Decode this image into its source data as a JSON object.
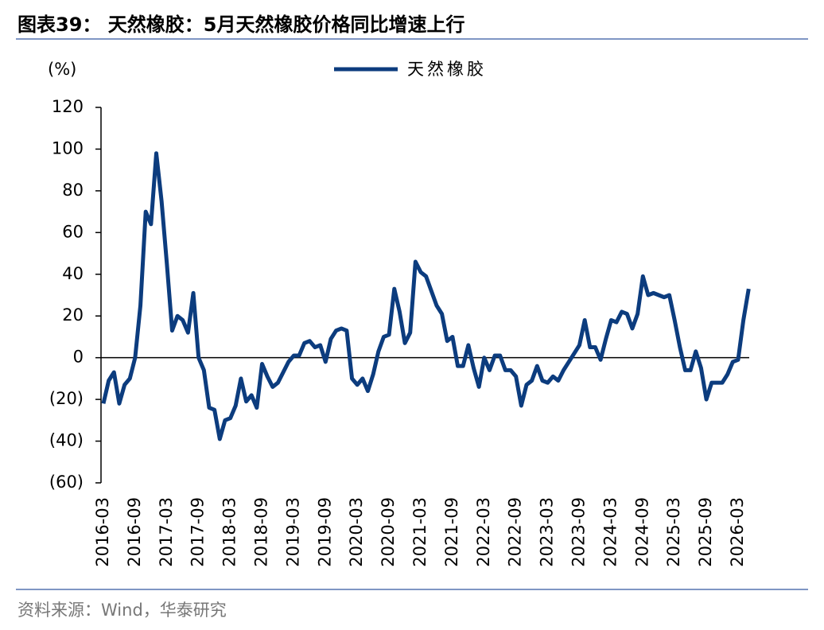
{
  "chart_data": {
    "type": "line",
    "title": "图表39：  天然橡胶：5月天然橡胶价格同比增速上行",
    "y_label": "(%)",
    "source": "资料来源：Wind，华泰研究",
    "categories": [
      "2016-03",
      null,
      null,
      null,
      null,
      null,
      "2016-09",
      null,
      null,
      null,
      null,
      null,
      "2017-03",
      null,
      null,
      null,
      null,
      null,
      "2017-09",
      null,
      null,
      null,
      null,
      null,
      "2018-03",
      null,
      null,
      null,
      null,
      null,
      "2018-09",
      null,
      null,
      null,
      null,
      null,
      "2019-03",
      null,
      null,
      null,
      null,
      null,
      "2019-09",
      null,
      null,
      null,
      null,
      null,
      "2020-03",
      null,
      null,
      null,
      null,
      null,
      "2020-09",
      null,
      null,
      null,
      null,
      null,
      "2021-03",
      null,
      null,
      null,
      null,
      null,
      "2021-09",
      null,
      null,
      null,
      null,
      null,
      "2022-03",
      null,
      null,
      null,
      null,
      null,
      "2022-09",
      null,
      null,
      null,
      null,
      null,
      "2023-03",
      null,
      null,
      null,
      null,
      null,
      "2023-09",
      null,
      null,
      null,
      null,
      null,
      "2024-03",
      null,
      null,
      null,
      null,
      null,
      "2024-09",
      null,
      null,
      null,
      null,
      null,
      "2025-03",
      null,
      null,
      null,
      null,
      null,
      "2025-09",
      null,
      null,
      null,
      null,
      null,
      "2026-03",
      null,
      null
    ],
    "series": [
      {
        "name": "天然橡胶",
        "color": "#0c3c7e",
        "values": [
          -22,
          -11,
          -7,
          -22,
          -13,
          -10,
          0,
          25,
          70,
          64,
          98,
          75,
          45,
          13,
          20,
          18,
          12,
          31,
          0,
          -6,
          -24,
          -25,
          -39,
          -30,
          -29,
          -23,
          -10,
          -21,
          -18,
          -24,
          -3,
          -9,
          -14,
          -12,
          -7,
          -2,
          1,
          1,
          7,
          8,
          5,
          6,
          -2,
          9,
          13,
          14,
          13,
          -10,
          -13,
          -10,
          -16,
          -8,
          3,
          10,
          11,
          33,
          22,
          7,
          12,
          46,
          41,
          39,
          32,
          25,
          21,
          8,
          10,
          -4,
          -4,
          6,
          -5,
          -14,
          0,
          -6,
          1,
          1,
          -6,
          -6,
          -9,
          -23,
          -13,
          -11,
          -4,
          -11,
          -12,
          -9,
          -11,
          -6,
          -2,
          2,
          6,
          18,
          5,
          5,
          -1,
          9,
          18,
          17,
          22,
          21,
          14,
          21,
          39,
          30,
          31,
          30,
          29,
          30,
          18,
          5,
          -6,
          -6,
          3,
          -5,
          -20,
          -12,
          -12,
          -12,
          -8,
          -2,
          -1,
          18,
          33
        ]
      }
    ],
    "ylim": [
      -60,
      120
    ],
    "yticks": [
      {
        "value": -60,
        "label": "(60)"
      },
      {
        "value": -40,
        "label": "(40)"
      },
      {
        "value": -20,
        "label": "(20)"
      },
      0,
      20,
      40,
      60,
      80,
      100,
      120
    ],
    "legend": "top"
  }
}
